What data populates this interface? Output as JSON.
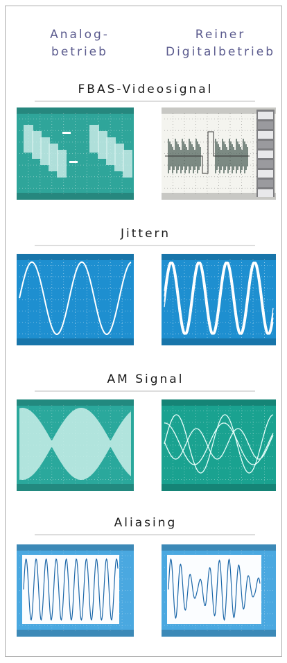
{
  "header": {
    "columns": [
      {
        "lines": [
          "Analog-",
          "betrieb"
        ]
      },
      {
        "lines": [
          "Reiner",
          "Digitalbetrieb"
        ]
      }
    ]
  },
  "sections": [
    {
      "title": "FBAS-Videosignal"
    },
    {
      "title": "Jittern"
    },
    {
      "title": "AM Signal"
    },
    {
      "title": "Aliasing"
    }
  ]
}
